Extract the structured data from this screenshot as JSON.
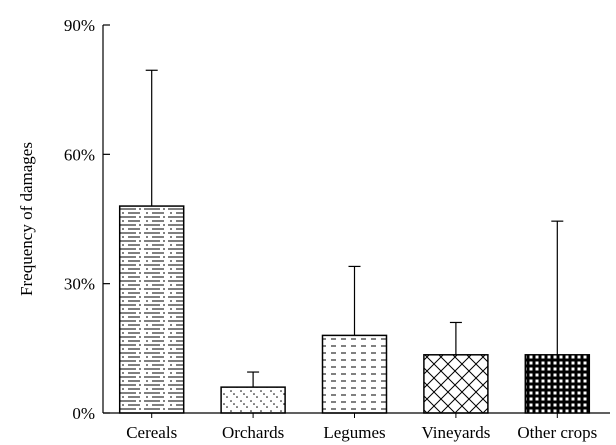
{
  "chart_data": {
    "type": "bar",
    "title": "",
    "xlabel": "",
    "ylabel": "Frequency of damages",
    "ylim": [
      0,
      90
    ],
    "yticks": [
      0,
      30,
      60,
      90
    ],
    "ytick_labels": [
      "0%",
      "30%",
      "60%",
      "90%"
    ],
    "categories": [
      "Cereals",
      "Orchards",
      "Legumes",
      "Vineyards",
      "Other crops"
    ],
    "values": [
      48,
      6,
      18,
      13.5,
      13.5
    ],
    "error_upper": [
      79.5,
      9.5,
      34,
      21,
      44.5
    ],
    "patterns": [
      "dash-horizontal",
      "dotted-diagonal",
      "dashed-horizontal",
      "crosshatch",
      "checker"
    ],
    "grid": false,
    "legend": "none",
    "colors": {
      "bar_fill": "#ffffff",
      "stroke": "#000000"
    }
  }
}
